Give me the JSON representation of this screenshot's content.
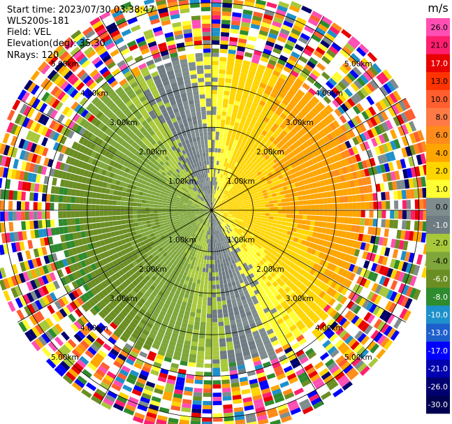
{
  "header": {
    "start_time": "Start time: 2023/07/30 03:38:47",
    "instrument": "WLS200s-181",
    "field": "Field: VEL",
    "elevation": "Elevation(deg): 35.30",
    "nrays": "NRays: 120"
  },
  "chart_data": {
    "type": "heatmap",
    "projection": "polar-ppi",
    "title": "",
    "nrays": 120,
    "range_rings_km": [
      1,
      2,
      3,
      4,
      5
    ],
    "ring_labels": [
      "1.00km",
      "2.00km",
      "3.00km",
      "4.00km",
      "5.00km"
    ],
    "max_range_km": 5.4,
    "colorbar": {
      "unit": "m/s",
      "ticks": [
        "26.0",
        "21.0",
        "17.0",
        "13.0",
        "10.0",
        "8.0",
        "6.0",
        "4.0",
        "2.0",
        "1.0",
        "0.0",
        "-1.0",
        "-2.0",
        "-4.0",
        "-6.0",
        "-8.0",
        "-10.0",
        "-13.0",
        "-17.0",
        "-21.0",
        "-26.0",
        "-30.0"
      ],
      "bins": [
        {
          "min": 26,
          "max": 30,
          "color": "#ff4fb4"
        },
        {
          "min": 21,
          "max": 26,
          "color": "#ff1f6e"
        },
        {
          "min": 17,
          "max": 21,
          "color": "#e80000"
        },
        {
          "min": 13,
          "max": 17,
          "color": "#ff3300"
        },
        {
          "min": 10,
          "max": 13,
          "color": "#ff5e2e"
        },
        {
          "min": 8,
          "max": 10,
          "color": "#ff7a46"
        },
        {
          "min": 6,
          "max": 8,
          "color": "#ff8c1a"
        },
        {
          "min": 4,
          "max": 6,
          "color": "#ffa500"
        },
        {
          "min": 2,
          "max": 4,
          "color": "#ffd500"
        },
        {
          "min": 1,
          "max": 2,
          "color": "#ffff33"
        },
        {
          "min": 0,
          "max": 1,
          "color": "#7f8c8d"
        },
        {
          "min": -1,
          "max": 0,
          "color": "#6e7b82"
        },
        {
          "min": -2,
          "max": -1,
          "color": "#a8c83a"
        },
        {
          "min": -4,
          "max": -2,
          "color": "#7ea63a"
        },
        {
          "min": -6,
          "max": -4,
          "color": "#6b8e23"
        },
        {
          "min": -8,
          "max": -6,
          "color": "#2e8b2e"
        },
        {
          "min": -10,
          "max": -8,
          "color": "#1e90cc"
        },
        {
          "min": -13,
          "max": -10,
          "color": "#1e5fcc"
        },
        {
          "min": -17,
          "max": -13,
          "color": "#0000ff"
        },
        {
          "min": -21,
          "max": -17,
          "color": "#0000b0"
        },
        {
          "min": -26,
          "max": -21,
          "color": "#00006e"
        },
        {
          "min": -30,
          "max": -26,
          "color": "#000050"
        }
      ]
    },
    "noise_palette": [
      "#ff4fb4",
      "#ff1f6e",
      "#e80000",
      "#ff5e2e",
      "#ff8c1a",
      "#ffa500",
      "#ffd500",
      "#ffff33",
      "#7f8c8d",
      "#a8c83a",
      "#6b8e23",
      "#2e8b2e",
      "#1e90cc",
      "#0000ff",
      "#00006e",
      "#ffffff"
    ],
    "wind_field": {
      "positive_direction_deg": 75,
      "valid_range_km": 3.7,
      "noise_start_km": 3.8
    }
  }
}
